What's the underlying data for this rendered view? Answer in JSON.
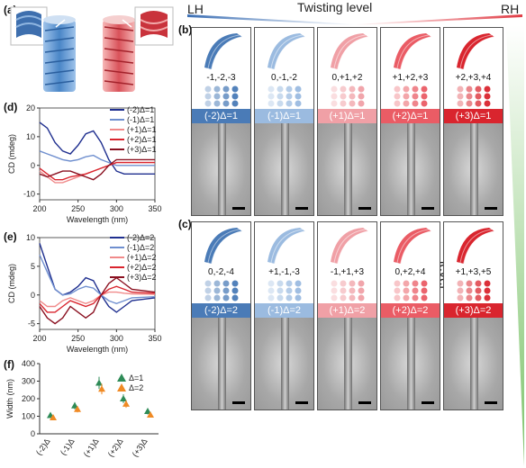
{
  "labels": {
    "a": "(a)",
    "b": "(b)",
    "c": "(c)",
    "d": "(d)",
    "e": "(e)",
    "f": "(f)"
  },
  "header": {
    "lh": "LH",
    "rh": "RH",
    "twisting": "Twisting level",
    "bending": "Bending level"
  },
  "panels_b": [
    {
      "codes": "-1,-2,-3",
      "band": "(-2)Δ=1",
      "color": "#4a7bb7"
    },
    {
      "codes": "0,-1,-2",
      "band": "(-1)Δ=1",
      "color": "#9bbbe0"
    },
    {
      "codes": "0,+1,+2",
      "band": "(+1)Δ=1",
      "color": "#f0a0a6"
    },
    {
      "codes": "+1,+2,+3",
      "band": "(+2)Δ=1",
      "color": "#ea5c65"
    },
    {
      "codes": "+2,+3,+4",
      "band": "(+3)Δ=1",
      "color": "#d9252e"
    }
  ],
  "panels_c": [
    {
      "codes": "0,-2,-4",
      "band": "(-2)Δ=2",
      "color": "#4a7bb7"
    },
    {
      "codes": "+1,-1,-3",
      "band": "(-1)Δ=2",
      "color": "#9bbbe0"
    },
    {
      "codes": "-1,+1,+3",
      "band": "(+1)Δ=2",
      "color": "#f0a0a6"
    },
    {
      "codes": "0,+2,+4",
      "band": "(+2)Δ=2",
      "color": "#ea5c65"
    },
    {
      "codes": "+1,+3,+5",
      "band": "(+3)Δ=2",
      "color": "#d9252e"
    }
  ],
  "chart_data": [
    {
      "panel": "d",
      "type": "line",
      "xlabel": "Wavelength (nm)",
      "ylabel": "CD (mdeg)",
      "xlim": [
        200,
        350
      ],
      "ylim": [
        -12,
        20
      ],
      "xticks": [
        200,
        250,
        300,
        350
      ],
      "yticks": [
        -10,
        0,
        10,
        20
      ],
      "series": [
        {
          "name": "(-2)Δ=1",
          "color": "#1f2f8f",
          "x": [
            200,
            210,
            220,
            230,
            240,
            250,
            260,
            270,
            280,
            290,
            300,
            310,
            320,
            350
          ],
          "y": [
            15,
            13,
            8,
            5,
            4,
            7,
            11,
            12,
            8,
            2,
            -2,
            -3,
            -3,
            -3
          ]
        },
        {
          "name": "(-1)Δ=1",
          "color": "#6f8fcf",
          "x": [
            200,
            210,
            220,
            230,
            240,
            250,
            260,
            270,
            280,
            290,
            300,
            310,
            320,
            350
          ],
          "y": [
            5,
            4,
            3,
            2,
            1.5,
            2,
            3,
            3.5,
            2,
            1,
            0,
            0,
            0,
            0
          ]
        },
        {
          "name": "(+1)Δ=1",
          "color": "#f08a8a",
          "x": [
            200,
            210,
            220,
            230,
            240,
            250,
            260,
            270,
            280,
            290,
            300,
            310,
            320,
            350
          ],
          "y": [
            -2,
            -4,
            -6,
            -6,
            -5,
            -4,
            -3,
            -2,
            -1,
            0,
            1,
            1,
            1,
            1
          ]
        },
        {
          "name": "(+2)Δ=1",
          "color": "#d9252e",
          "x": [
            200,
            210,
            220,
            230,
            240,
            250,
            260,
            270,
            280,
            290,
            300,
            310,
            320,
            350
          ],
          "y": [
            -1,
            -3,
            -5,
            -5,
            -4,
            -3.5,
            -3,
            -2,
            -1,
            0,
            1,
            1,
            1,
            1
          ]
        },
        {
          "name": "(+3)Δ=1",
          "color": "#8a1020",
          "x": [
            200,
            210,
            220,
            230,
            240,
            250,
            260,
            270,
            280,
            290,
            300,
            310,
            320,
            350
          ],
          "y": [
            -3,
            -4,
            -3,
            -2,
            -2,
            -3,
            -4,
            -5,
            -3,
            0,
            2,
            2,
            2,
            2
          ]
        }
      ]
    },
    {
      "panel": "e",
      "type": "line",
      "xlabel": "Wavelength (nm)",
      "ylabel": "CD (mdeg)",
      "xlim": [
        200,
        350
      ],
      "ylim": [
        -6,
        10
      ],
      "xticks": [
        200,
        250,
        300,
        350
      ],
      "yticks": [
        -5,
        0,
        5,
        10
      ],
      "series": [
        {
          "name": "(-2)Δ=2",
          "color": "#1f2f8f",
          "x": [
            200,
            210,
            220,
            230,
            240,
            250,
            260,
            270,
            280,
            290,
            300,
            310,
            320,
            350
          ],
          "y": [
            9,
            5,
            1,
            0,
            0.5,
            1.5,
            3,
            2.5,
            0,
            -2,
            -3,
            -2,
            -1,
            -0.5
          ]
        },
        {
          "name": "(-1)Δ=2",
          "color": "#6f8fcf",
          "x": [
            200,
            210,
            220,
            230,
            240,
            250,
            260,
            270,
            280,
            290,
            300,
            310,
            320,
            350
          ],
          "y": [
            7,
            4,
            1,
            0,
            0.2,
            1,
            1.5,
            1.2,
            0,
            -1,
            -1.5,
            -1,
            -0.5,
            -0.3
          ]
        },
        {
          "name": "(+1)Δ=2",
          "color": "#f08a8a",
          "x": [
            200,
            210,
            220,
            230,
            240,
            250,
            260,
            270,
            280,
            290,
            300,
            310,
            320,
            350
          ],
          "y": [
            -1,
            -2,
            -2,
            -1,
            -0.5,
            -1,
            -1.5,
            -1,
            0,
            0.5,
            0.5,
            0.3,
            0.2,
            0.1
          ]
        },
        {
          "name": "(+2)Δ=2",
          "color": "#d9252e",
          "x": [
            200,
            210,
            220,
            230,
            240,
            250,
            260,
            270,
            280,
            290,
            300,
            310,
            320,
            350
          ],
          "y": [
            -1.5,
            -3,
            -3,
            -2,
            -1,
            -1.5,
            -2,
            -1.5,
            0,
            1,
            1.5,
            1,
            0.5,
            0.3
          ]
        },
        {
          "name": "(+3)Δ=2",
          "color": "#8a1020",
          "x": [
            200,
            210,
            220,
            230,
            240,
            250,
            260,
            270,
            280,
            290,
            300,
            310,
            320,
            350
          ],
          "y": [
            -2,
            -4,
            -5,
            -4,
            -2,
            -3,
            -4,
            -3,
            0,
            2,
            3,
            2,
            1,
            0.5
          ]
        }
      ]
    },
    {
      "panel": "f",
      "type": "scatter",
      "xlabel": "",
      "ylabel": "Width (nm)",
      "ylim": [
        0,
        400
      ],
      "yticks": [
        0,
        100,
        200,
        300,
        400
      ],
      "categories": [
        "(-2)Δ",
        "(-1)Δ",
        "(+1)Δ",
        "(+2)Δ",
        "(+3)Δ"
      ],
      "series": [
        {
          "name": "Δ=1",
          "color": "#2e8b57",
          "values": [
            105,
            160,
            290,
            200,
            128
          ],
          "err": [
            15,
            20,
            35,
            25,
            18
          ]
        },
        {
          "name": "Δ=2",
          "color": "#f08a24",
          "values": [
            92,
            140,
            255,
            170,
            108
          ],
          "err": [
            12,
            18,
            30,
            22,
            15
          ]
        }
      ]
    }
  ]
}
